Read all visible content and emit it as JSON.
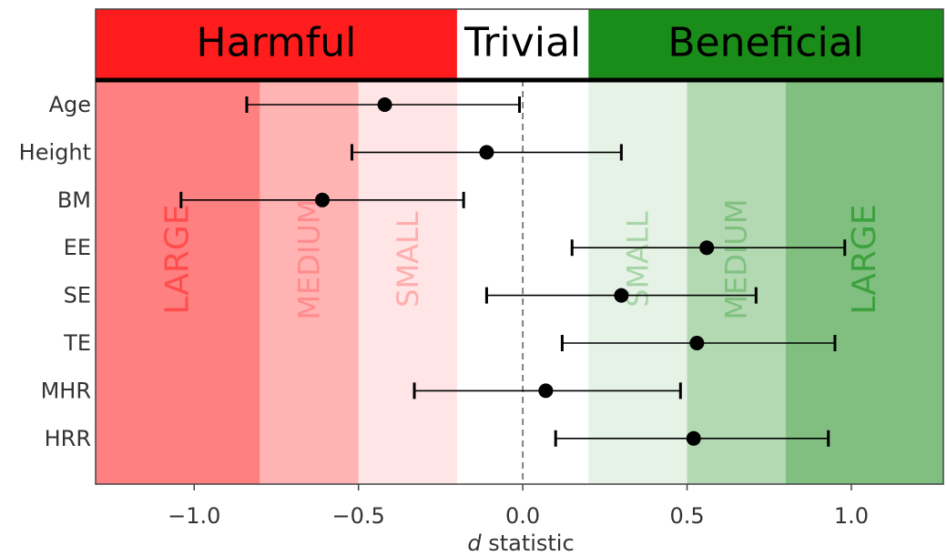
{
  "chart_data": {
    "type": "forest",
    "xlabel_italic": "d",
    "xlabel_rest": " statistic",
    "xlim": [
      -1.3,
      1.28
    ],
    "xticks": [
      -1.0,
      -0.5,
      0.0,
      0.5,
      1.0
    ],
    "xtick_labels": [
      "−1.0",
      "−0.5",
      "0.0",
      "0.5",
      "1.0"
    ],
    "reference_line": 0.0,
    "header": {
      "harmful": "Harmful",
      "trivial": "Trivial",
      "beneficial": "Beneficial",
      "trivial_range": [
        -0.2,
        0.2
      ],
      "harmful_color": "#ff1c1c",
      "trivial_color": "#ffffff",
      "beneficial_color": "#1a8c1a"
    },
    "zones": [
      {
        "label": "LARGE",
        "from": -1.3,
        "to": -0.8,
        "fill": "#ff8080",
        "text_color": "#ff4d4d"
      },
      {
        "label": "MEDIUM",
        "from": -0.8,
        "to": -0.5,
        "fill": "#ffb3b3",
        "text_color": "#ff8c8c"
      },
      {
        "label": "SMALL",
        "from": -0.5,
        "to": -0.2,
        "fill": "#ffe5e5",
        "text_color": "#ffadad"
      },
      {
        "label": "SMALL",
        "from": 0.2,
        "to": 0.5,
        "fill": "#e5f2e5",
        "text_color": "#a8d5a8"
      },
      {
        "label": "MEDIUM",
        "from": 0.5,
        "to": 0.8,
        "fill": "#b3d9b3",
        "text_color": "#80c080"
      },
      {
        "label": "LARGE",
        "from": 0.8,
        "to": 1.28,
        "fill": "#80bf80",
        "text_color": "#3ea03e"
      }
    ],
    "series": [
      {
        "label": "Age",
        "d": -0.42,
        "ci": [
          -0.84,
          -0.01
        ]
      },
      {
        "label": "Height",
        "d": -0.11,
        "ci": [
          -0.52,
          0.3
        ]
      },
      {
        "label": "BM",
        "d": -0.61,
        "ci": [
          -1.04,
          -0.18
        ]
      },
      {
        "label": "EE",
        "d": 0.56,
        "ci": [
          0.15,
          0.98
        ]
      },
      {
        "label": "SE",
        "d": 0.3,
        "ci": [
          -0.11,
          0.71
        ]
      },
      {
        "label": "TE",
        "d": 0.53,
        "ci": [
          0.12,
          0.95
        ]
      },
      {
        "label": "MHR",
        "d": 0.07,
        "ci": [
          -0.33,
          0.48
        ]
      },
      {
        "label": "HRR",
        "d": 0.52,
        "ci": [
          0.1,
          0.93
        ]
      }
    ]
  }
}
